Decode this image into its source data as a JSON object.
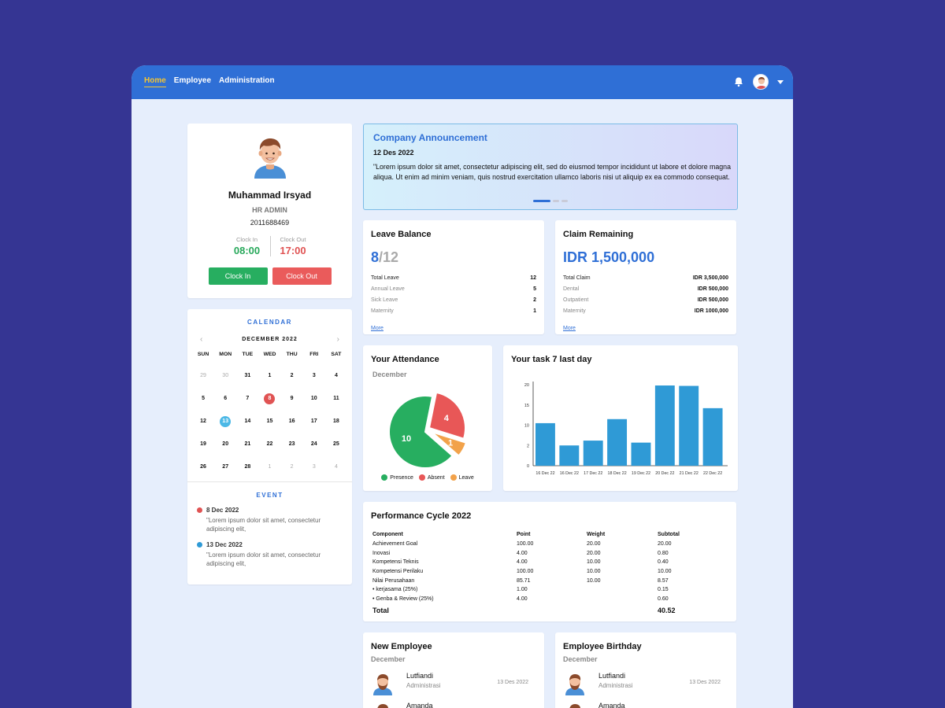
{
  "nav": {
    "items": [
      "Home",
      "Employee",
      "Administration"
    ]
  },
  "profile": {
    "name": "Muhammad Irsyad",
    "role": "HR ADMIN",
    "id": "2011688469",
    "clock_in_label": "Clock In",
    "clock_out_label": "Clock Out",
    "clock_in": "08:00",
    "clock_out": "17:00",
    "clock_in_button": "Clock In",
    "clock_out_button": "Clock Out"
  },
  "calendar": {
    "title": "CALENDAR",
    "month": "DECEMBER 2022",
    "weekdays": [
      "SUN",
      "MON",
      "TUE",
      "WED",
      "THU",
      "FRI",
      "SAT"
    ],
    "days": [
      {
        "d": "29",
        "muted": true
      },
      {
        "d": "30",
        "muted": true
      },
      {
        "d": "31"
      },
      {
        "d": "1"
      },
      {
        "d": "2"
      },
      {
        "d": "3"
      },
      {
        "d": "4"
      },
      {
        "d": "5"
      },
      {
        "d": "6"
      },
      {
        "d": "7"
      },
      {
        "d": "8",
        "mark": "red"
      },
      {
        "d": "9"
      },
      {
        "d": "10"
      },
      {
        "d": "11"
      },
      {
        "d": "12"
      },
      {
        "d": "13",
        "mark": "blue"
      },
      {
        "d": "14"
      },
      {
        "d": "15"
      },
      {
        "d": "16"
      },
      {
        "d": "17"
      },
      {
        "d": "18"
      },
      {
        "d": "19"
      },
      {
        "d": "20"
      },
      {
        "d": "21"
      },
      {
        "d": "22"
      },
      {
        "d": "23"
      },
      {
        "d": "24"
      },
      {
        "d": "25"
      },
      {
        "d": "26"
      },
      {
        "d": "27"
      },
      {
        "d": "28"
      },
      {
        "d": "1",
        "muted": true
      },
      {
        "d": "2",
        "muted": true
      },
      {
        "d": "3",
        "muted": true
      },
      {
        "d": "4",
        "muted": true
      }
    ],
    "event_title": "EVENT",
    "events": [
      {
        "date": "8 Dec 2022",
        "text": "\"Lorem ipsum dolor sit amet, consectetur adipiscing elit,",
        "color": "#e05353"
      },
      {
        "date": "13 Dec 2022",
        "text": "\"Lorem ipsum dolor sit amet, consectetur adipiscing elit,",
        "color": "#2f9ad6"
      }
    ]
  },
  "announcement": {
    "title": "Company Announcement",
    "date": "12 Des 2022",
    "text": "\"Lorem ipsum dolor sit amet, consectetur adipiscing elit, sed do eiusmod tempor incididunt ut labore et dolore magna aliqua. Ut enim ad minim veniam, quis nostrud exercitation ullamco laboris nisi ut aliquip ex ea commodo consequat."
  },
  "leave": {
    "title": "Leave Balance",
    "used": "8",
    "total": "/12",
    "rows": [
      {
        "label": "Total Leave",
        "value": "12"
      },
      {
        "label": "Annual Leave",
        "value": "5"
      },
      {
        "label": "Sick Leave",
        "value": "2"
      },
      {
        "label": "Maternity",
        "value": "1"
      }
    ],
    "more": "More"
  },
  "claim": {
    "title": "Claim Remaining",
    "amount": "IDR 1,500,000",
    "rows": [
      {
        "label": "Total Claim",
        "value": "IDR 3,500,000"
      },
      {
        "label": "Dental",
        "value": "IDR 500,000"
      },
      {
        "label": "Outpatient",
        "value": "IDR 500,000"
      },
      {
        "label": "Maternity",
        "value": "IDR 1000,000"
      }
    ],
    "more": "More"
  },
  "attendance": {
    "title": "Your Attendance",
    "subtitle": "December",
    "colors": {
      "Presence": "#27ae60",
      "Absent": "#e85757",
      "Leave": "#f2a24a"
    }
  },
  "task": {
    "title": "Your task 7 last day"
  },
  "chart_data": [
    {
      "type": "pie",
      "categories": [
        "Presence",
        "Absent",
        "Leave"
      ],
      "values": [
        10,
        4,
        1
      ],
      "legend": "bottom"
    },
    {
      "type": "bar",
      "categories": [
        "16 Dec 22",
        "16 Dec 22",
        "17 Dec 22",
        "18 Dec 22",
        "19 Dec 22",
        "20 Dec 22",
        "21 Dec 22",
        "22 Dec 22"
      ],
      "values": [
        10.5,
        5,
        6.2,
        11.5,
        5.7,
        19.8,
        19.7,
        14.2
      ],
      "yticks": [
        0,
        2,
        10,
        15,
        20
      ],
      "ylim": [
        0,
        20
      ],
      "color": "#2f9ad6"
    }
  ],
  "performance": {
    "title": "Performance Cycle 2022",
    "headers": [
      "Component",
      "Point",
      "Weight",
      "Subtotal"
    ],
    "rows": [
      [
        "Achievement Goal",
        "100.00",
        "20.00",
        "20.00"
      ],
      [
        "Inovasi",
        "4.00",
        "20.00",
        "0.80"
      ],
      [
        "Kompetensi Teknis",
        "4.00",
        "10.00",
        "0.40"
      ],
      [
        "Kompetensi Perilaku",
        "100.00",
        "10.00",
        "10.00"
      ],
      [
        "Nilai Perusahaan",
        "85.71",
        "10.00",
        "8.57"
      ],
      [
        "•  kerjasama (25%)",
        "1.00",
        "",
        "0.15"
      ],
      [
        "•  Genba & Review (25%)",
        "4.00",
        "",
        "0.60"
      ]
    ],
    "total_label": "Total",
    "total_value": "40.52"
  },
  "new_employee": {
    "title": "New Employee",
    "subtitle": "December",
    "people": [
      {
        "name": "Lutfiandi",
        "dept": "Administrasi",
        "date": "13 Des 2022"
      },
      {
        "name": "Amanda",
        "dept": "",
        "date": ""
      }
    ]
  },
  "birthday": {
    "title": "Employee Birthday",
    "subtitle": "December",
    "people": [
      {
        "name": "Lutfiandi",
        "dept": "Administrasi",
        "date": "13 Des 2022"
      },
      {
        "name": "Amanda",
        "dept": "",
        "date": ""
      }
    ]
  }
}
